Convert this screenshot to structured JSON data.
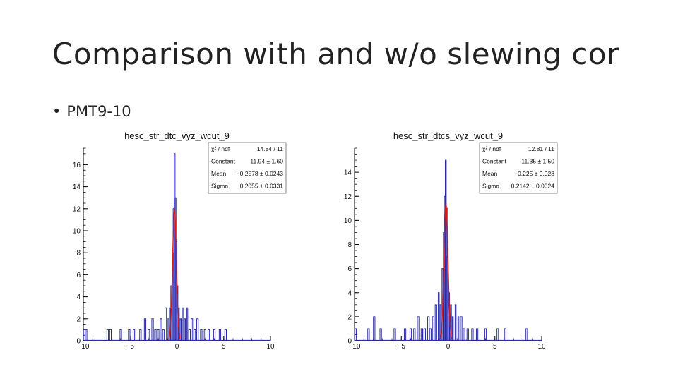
{
  "slide": {
    "title": "Comparison with and w/o slewing cor",
    "bullet_marker": "•",
    "bullet": "PMT9-10"
  },
  "chart_data": [
    {
      "type": "histogram",
      "title": "hesc_str_dtc_vyz_wcut_9",
      "xlim": [
        -10,
        10
      ],
      "ylim": [
        0,
        17.5
      ],
      "xticks": [
        -10,
        -5,
        0,
        5,
        10
      ],
      "yticks": [
        0,
        2,
        4,
        6,
        8,
        10,
        12,
        14,
        16
      ],
      "histogram_color": "#2a2aa8",
      "fit_color": "#d41a1a",
      "stats": [
        {
          "label": "χ² / ndf",
          "value": "14.84 / 11"
        },
        {
          "label": "Constant",
          "value": "11.94 ± 1.60"
        },
        {
          "label": "Mean",
          "value": "−0.2578 ± 0.0243"
        },
        {
          "label": "Sigma",
          "value": "0.2055 ± 0.0331"
        }
      ],
      "fit": {
        "constant": 11.94,
        "mean": -0.2578,
        "sigma": 0.2055
      },
      "peak": {
        "x": -0.25,
        "y": 17
      },
      "bins": [
        {
          "x": -9.9,
          "y": 1
        },
        {
          "x": -9.7,
          "y": 1
        },
        {
          "x": -7.4,
          "y": 1
        },
        {
          "x": -7.1,
          "y": 1
        },
        {
          "x": -6.0,
          "y": 1
        },
        {
          "x": -5.1,
          "y": 1
        },
        {
          "x": -4.6,
          "y": 1
        },
        {
          "x": -3.9,
          "y": 1
        },
        {
          "x": -3.4,
          "y": 2
        },
        {
          "x": -3.0,
          "y": 1
        },
        {
          "x": -2.6,
          "y": 2
        },
        {
          "x": -2.3,
          "y": 1
        },
        {
          "x": -2.0,
          "y": 1
        },
        {
          "x": -1.7,
          "y": 2
        },
        {
          "x": -1.45,
          "y": 1
        },
        {
          "x": -1.2,
          "y": 3
        },
        {
          "x": -0.9,
          "y": 2
        },
        {
          "x": -0.75,
          "y": 3
        },
        {
          "x": -0.6,
          "y": 5
        },
        {
          "x": -0.45,
          "y": 8
        },
        {
          "x": -0.35,
          "y": 12
        },
        {
          "x": -0.25,
          "y": 17
        },
        {
          "x": -0.15,
          "y": 13
        },
        {
          "x": -0.05,
          "y": 9
        },
        {
          "x": 0.05,
          "y": 5
        },
        {
          "x": 0.2,
          "y": 3
        },
        {
          "x": 0.4,
          "y": 2
        },
        {
          "x": 0.6,
          "y": 3
        },
        {
          "x": 0.85,
          "y": 2
        },
        {
          "x": 1.1,
          "y": 3
        },
        {
          "x": 1.35,
          "y": 1
        },
        {
          "x": 1.6,
          "y": 2
        },
        {
          "x": 1.9,
          "y": 1
        },
        {
          "x": 2.2,
          "y": 2
        },
        {
          "x": 2.6,
          "y": 1
        },
        {
          "x": 3.0,
          "y": 1
        },
        {
          "x": 3.4,
          "y": 1
        },
        {
          "x": 4.0,
          "y": 1
        },
        {
          "x": 4.6,
          "y": 1
        },
        {
          "x": 5.2,
          "y": 1
        }
      ]
    },
    {
      "type": "histogram",
      "title": "hesc_str_dtcs_vyz_wcut_9",
      "xlim": [
        -10,
        10
      ],
      "ylim": [
        0,
        16
      ],
      "xticks": [
        -10,
        -5,
        0,
        5,
        10
      ],
      "yticks": [
        0,
        2,
        4,
        6,
        8,
        10,
        12,
        14
      ],
      "histogram_color": "#2a2aa8",
      "fit_color": "#d41a1a",
      "stats": [
        {
          "label": "χ² / ndf",
          "value": "12.81 / 11"
        },
        {
          "label": "Constant",
          "value": "11.35 ± 1.50"
        },
        {
          "label": "Mean",
          "value": "−0.225 ± 0.028"
        },
        {
          "label": "Sigma",
          "value": "0.2142 ± 0.0324"
        }
      ],
      "fit": {
        "constant": 11.35,
        "mean": -0.225,
        "sigma": 0.2142
      },
      "peak": {
        "x": -0.2,
        "y": 15
      },
      "bins": [
        {
          "x": -9.9,
          "y": 1
        },
        {
          "x": -8.5,
          "y": 1
        },
        {
          "x": -7.9,
          "y": 2
        },
        {
          "x": -7.2,
          "y": 1
        },
        {
          "x": -5.7,
          "y": 1
        },
        {
          "x": -4.6,
          "y": 1
        },
        {
          "x": -4.0,
          "y": 1
        },
        {
          "x": -3.6,
          "y": 1
        },
        {
          "x": -3.2,
          "y": 2
        },
        {
          "x": -2.8,
          "y": 1
        },
        {
          "x": -2.5,
          "y": 1
        },
        {
          "x": -2.1,
          "y": 2
        },
        {
          "x": -1.9,
          "y": 1
        },
        {
          "x": -1.6,
          "y": 2
        },
        {
          "x": -1.3,
          "y": 3
        },
        {
          "x": -1.0,
          "y": 4
        },
        {
          "x": -0.8,
          "y": 3
        },
        {
          "x": -0.6,
          "y": 6
        },
        {
          "x": -0.45,
          "y": 9
        },
        {
          "x": -0.35,
          "y": 12
        },
        {
          "x": -0.25,
          "y": 15
        },
        {
          "x": -0.15,
          "y": 11
        },
        {
          "x": -0.05,
          "y": 7
        },
        {
          "x": 0.1,
          "y": 4
        },
        {
          "x": 0.3,
          "y": 3
        },
        {
          "x": 0.5,
          "y": 2
        },
        {
          "x": 0.8,
          "y": 3
        },
        {
          "x": 1.1,
          "y": 2
        },
        {
          "x": 1.4,
          "y": 2
        },
        {
          "x": 1.7,
          "y": 1
        },
        {
          "x": 2.1,
          "y": 1
        },
        {
          "x": 2.6,
          "y": 1
        },
        {
          "x": 3.1,
          "y": 1
        },
        {
          "x": 4.0,
          "y": 1
        },
        {
          "x": 5.3,
          "y": 1
        },
        {
          "x": 6.1,
          "y": 1
        },
        {
          "x": 8.4,
          "y": 1
        }
      ]
    }
  ]
}
